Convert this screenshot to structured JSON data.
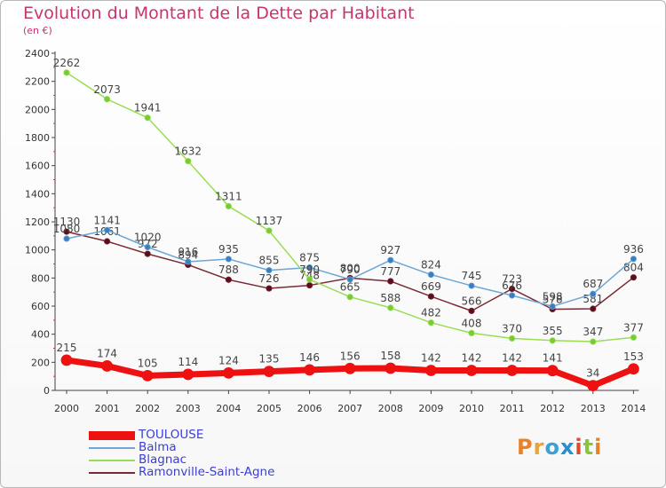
{
  "header": {
    "title": "Evolution du Montant de la Dette par Habitant",
    "unit": "(en €)"
  },
  "colors": {
    "TOULOUSE": "#ee1111",
    "Balma": "#6ea6d6",
    "Blagnac": "#99dd55",
    "Ramonville-Saint-Agne": "#7a2a35",
    "title": "#c8346e",
    "legend_text": "#3b3fd6"
  },
  "chart_data": {
    "type": "line",
    "title": "Evolution du Montant de la Dette par Habitant",
    "ylabel": "(en €)",
    "xlabel": "",
    "x": [
      "2000",
      "2001",
      "2002",
      "2003",
      "2004",
      "2005",
      "2006",
      "2007",
      "2008",
      "2009",
      "2010",
      "2011",
      "2012",
      "2013",
      "2014"
    ],
    "ylim": [
      0,
      2400
    ],
    "yticks": [
      0,
      200,
      400,
      600,
      800,
      1000,
      1200,
      1400,
      1600,
      1800,
      2000,
      2200,
      2400
    ],
    "grid": false,
    "legend_position": "bottom-left",
    "series": [
      {
        "name": "Ramonville-Saint-Agne",
        "values": [
          1130,
          1061,
          972,
          894,
          788,
          726,
          748,
          800,
          777,
          669,
          566,
          723,
          578,
          581,
          804
        ]
      },
      {
        "name": "Balma",
        "values": [
          1080,
          1141,
          1020,
          916,
          935,
          855,
          875,
          790,
          927,
          824,
          745,
          676,
          598,
          687,
          936
        ]
      },
      {
        "name": "Blagnac",
        "values": [
          2262,
          2073,
          1941,
          1632,
          1311,
          1137,
          790,
          665,
          588,
          482,
          408,
          370,
          355,
          347,
          377
        ]
      },
      {
        "name": "TOULOUSE",
        "values": [
          215,
          174,
          105,
          114,
          124,
          135,
          146,
          156,
          158,
          142,
          142,
          142,
          141,
          34,
          153
        ]
      }
    ]
  },
  "legend": {
    "items": [
      "TOULOUSE",
      "Balma",
      "Blagnac",
      "Ramonville-Saint-Agne"
    ]
  },
  "logo": {
    "letters": [
      "P",
      "r",
      "o",
      "x",
      "i",
      "t",
      "i"
    ]
  }
}
